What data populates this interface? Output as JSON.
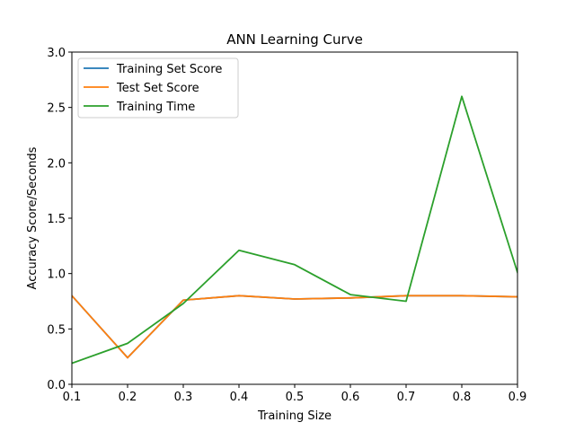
{
  "chart_data": {
    "type": "line",
    "title": "ANN Learning Curve",
    "xlabel": "Training Size",
    "ylabel": "Accuracy Score/Seconds",
    "xlim": [
      0.1,
      0.9
    ],
    "ylim": [
      0.0,
      3.0
    ],
    "xticks": [
      "0.1",
      "0.2",
      "0.3",
      "0.4",
      "0.5",
      "0.6",
      "0.7",
      "0.8",
      "0.9"
    ],
    "yticks": [
      "0.0",
      "0.5",
      "1.0",
      "1.5",
      "2.0",
      "2.5",
      "3.0"
    ],
    "grid": false,
    "legend_position": "top-left",
    "x": [
      0.1,
      0.2,
      0.3,
      0.4,
      0.5,
      0.6,
      0.7,
      0.8,
      0.9
    ],
    "series": [
      {
        "name": "Training Set Score",
        "color": "#1f77b4",
        "values": [
          0.8,
          0.24,
          0.76,
          0.8,
          0.77,
          0.78,
          0.8,
          0.8,
          0.79
        ]
      },
      {
        "name": "Test Set Score",
        "color": "#ff7f0e",
        "values": [
          0.8,
          0.24,
          0.76,
          0.8,
          0.77,
          0.78,
          0.8,
          0.8,
          0.79
        ]
      },
      {
        "name": "Training Time",
        "color": "#2ca02c",
        "values": [
          0.19,
          0.37,
          0.73,
          1.21,
          1.08,
          0.81,
          0.75,
          2.6,
          1.01
        ]
      }
    ]
  }
}
